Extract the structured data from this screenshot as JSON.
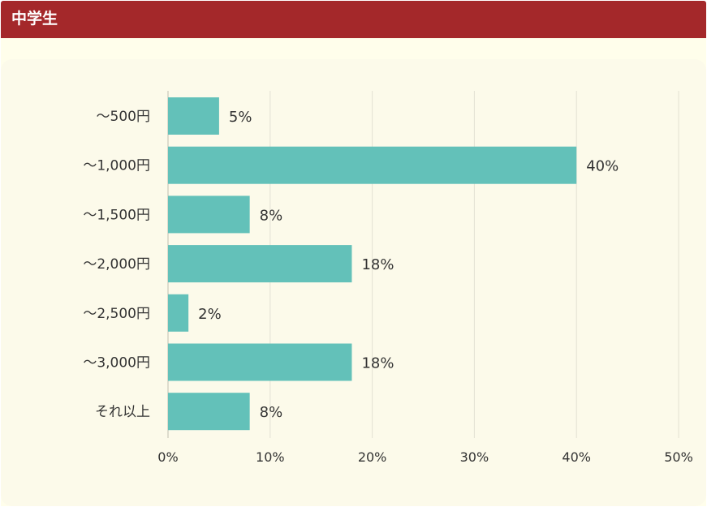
{
  "header": {
    "title": "中学生"
  },
  "colors": {
    "header_bg": "#a4282a",
    "bar": "#63c1b9",
    "panel_bg": "#fcfaea",
    "grid": "#e3e1d3",
    "axis": "#bfbdb0",
    "text": "#333333"
  },
  "chart_data": {
    "type": "bar",
    "orientation": "horizontal",
    "title": "",
    "xlabel": "",
    "ylabel": "",
    "categories": [
      "～500円",
      "～1,000円",
      "～1,500円",
      "～2,000円",
      "～2,500円",
      "～3,000円",
      "それ以上"
    ],
    "values": [
      5,
      40,
      8,
      18,
      2,
      18,
      8
    ],
    "value_labels": [
      "5%",
      "40%",
      "8%",
      "18%",
      "2%",
      "18%",
      "8%"
    ],
    "xlim": [
      0,
      50
    ],
    "xticks": [
      0,
      10,
      20,
      30,
      40,
      50
    ],
    "xtick_labels": [
      "0%",
      "10%",
      "20%",
      "30%",
      "40%",
      "50%"
    ],
    "grid": true,
    "legend": "none"
  }
}
